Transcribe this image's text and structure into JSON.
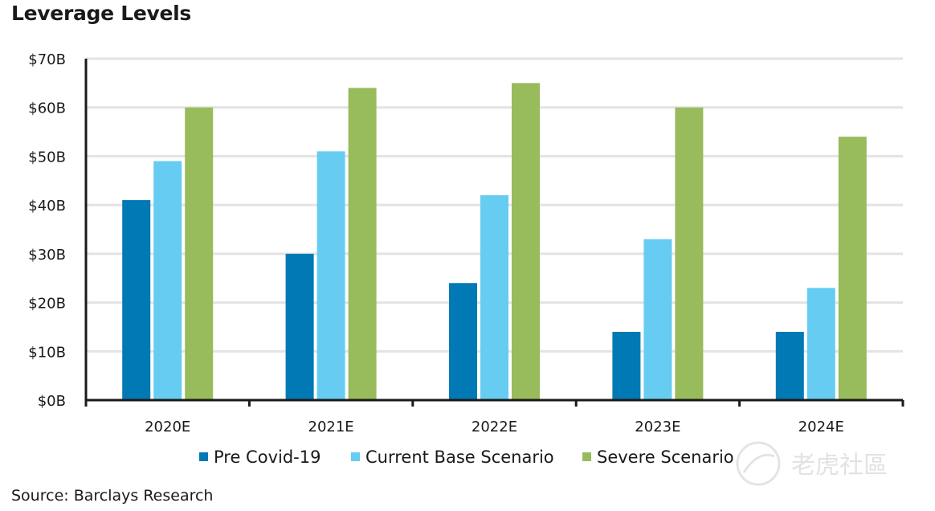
{
  "title": "Leverage Levels",
  "source": "Source: Barclays Research",
  "watermark": "老虎社區",
  "chart_data": {
    "type": "bar",
    "title": "Leverage Levels",
    "xlabel": "",
    "ylabel": "",
    "categories": [
      "2020E",
      "2021E",
      "2022E",
      "2023E",
      "2024E"
    ],
    "series": [
      {
        "name": "Pre Covid-19",
        "color": "#0079b4",
        "values": [
          41,
          30,
          24,
          14,
          14
        ]
      },
      {
        "name": "Current Base Scenario",
        "color": "#66ccf2",
        "values": [
          49,
          51,
          42,
          33,
          23
        ]
      },
      {
        "name": "Severe Scenario",
        "color": "#98bb5c",
        "values": [
          60,
          64,
          65,
          60,
          54
        ]
      }
    ],
    "ylim": [
      0,
      70
    ],
    "yticks": [
      0,
      10,
      20,
      30,
      40,
      50,
      60,
      70
    ],
    "ytick_labels": [
      "$0B",
      "$10B",
      "$20B",
      "$30B",
      "$40B",
      "$50B",
      "$60B",
      "$70B"
    ],
    "grid": true,
    "legend_position": "bottom"
  }
}
